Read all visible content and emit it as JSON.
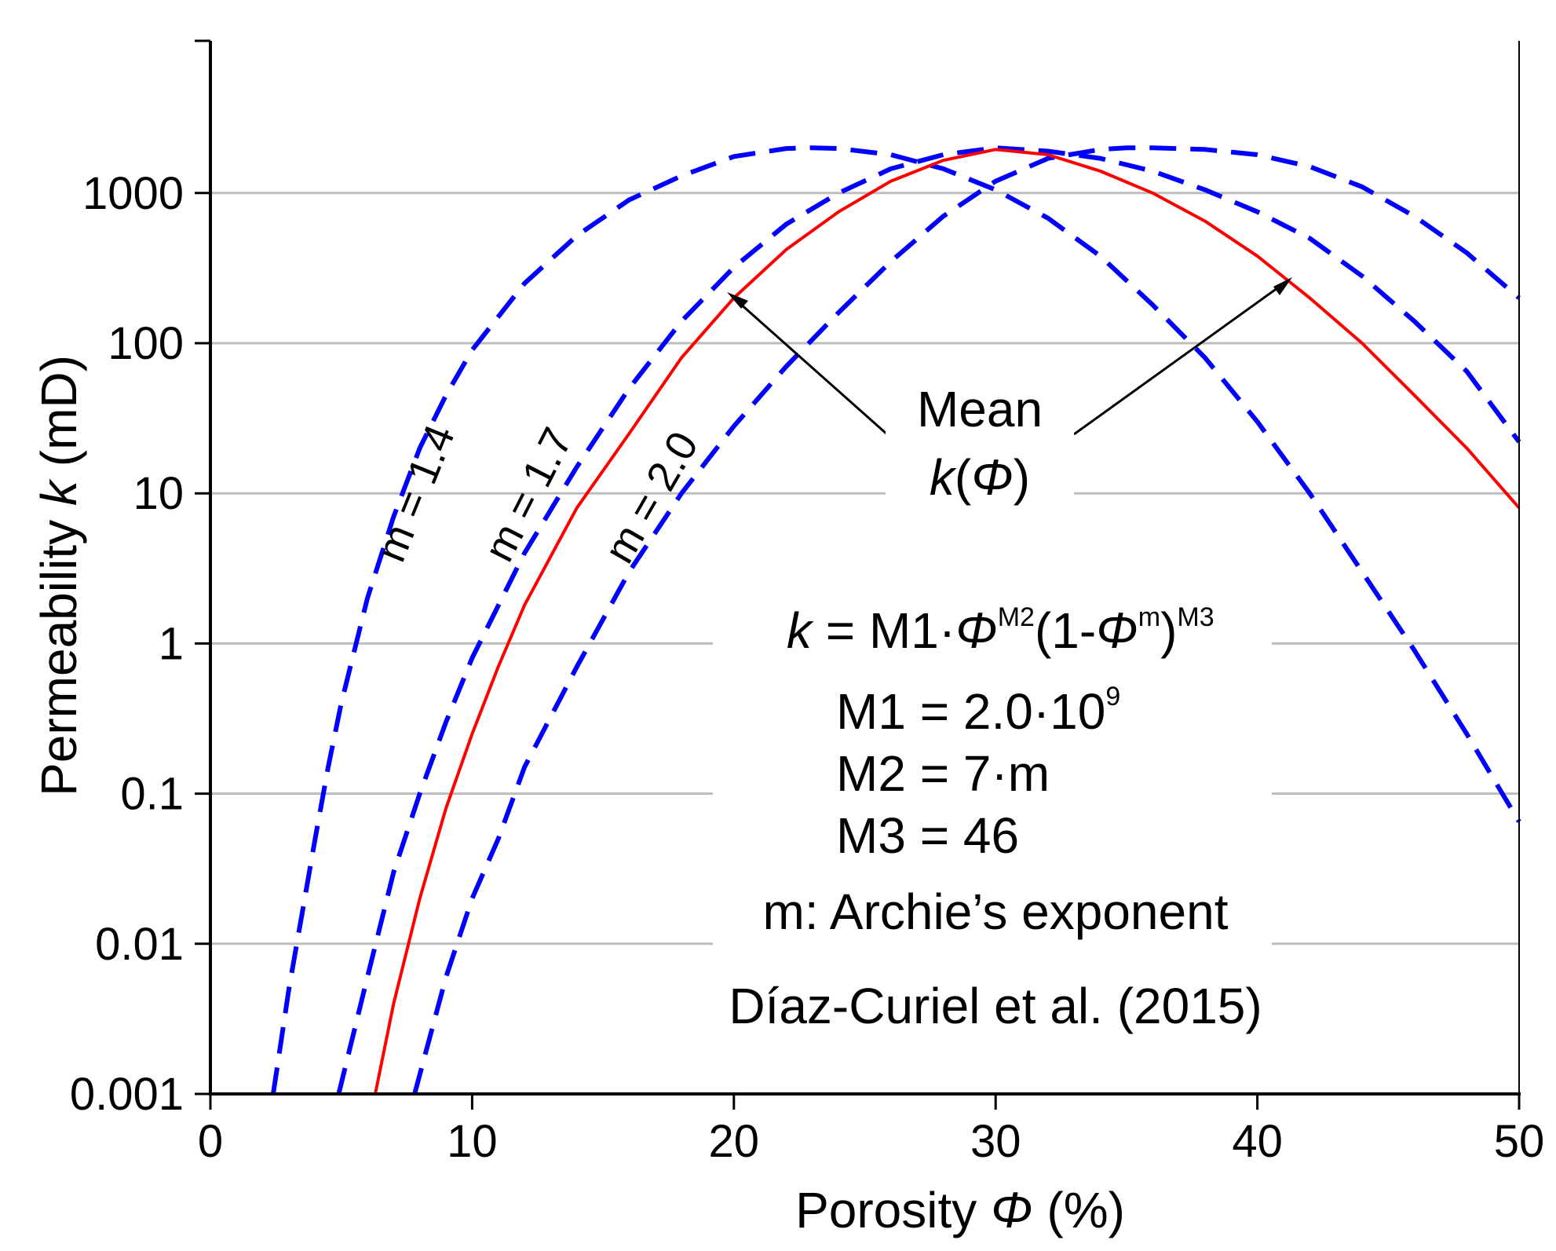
{
  "chart_data": {
    "type": "line",
    "title": "",
    "xlabel": {
      "prefix": "Porosity ",
      "symbol": "Φ",
      "suffix": " (%)"
    },
    "ylabel": {
      "prefix": "Permeability ",
      "symbol": "k",
      "suffix": " (mD)"
    },
    "xlim": [
      0,
      50
    ],
    "ylim": [
      0.001,
      10000
    ],
    "yscale": "log",
    "x_ticks": [
      0,
      10,
      20,
      30,
      40,
      50
    ],
    "x_tick_labels": [
      "0",
      "10",
      "20",
      "30",
      "40",
      "50"
    ],
    "y_ticks": [
      0.001,
      0.01,
      0.1,
      1,
      10,
      100,
      1000
    ],
    "y_tick_labels": [
      "0.001",
      "0.01",
      "0.1",
      "1",
      "10",
      "100",
      "1000"
    ],
    "grid": "horizontal",
    "series": [
      {
        "name": "m = 1.4",
        "label_parts": [
          "m = 1.4"
        ],
        "style": "dashed",
        "color": "#0000ff",
        "x": [
          2.4,
          3,
          4,
          4.5,
          5,
          6,
          7,
          8,
          9,
          10,
          12,
          14,
          16,
          18,
          20,
          22,
          23,
          24,
          26,
          28,
          30,
          32,
          34,
          36,
          38,
          40,
          42,
          44,
          46,
          48,
          50
        ],
        "y": [
          0.001,
          0.005,
          0.05,
          0.15,
          0.4,
          2,
          7,
          20,
          45,
          90,
          250,
          520,
          900,
          1300,
          1750,
          1980,
          2000,
          1980,
          1800,
          1450,
          1050,
          680,
          380,
          180,
          80,
          30,
          10,
          3,
          0.9,
          0.25,
          0.065
        ]
      },
      {
        "name": "m = 1.7",
        "label_parts": [
          "m = 1.7"
        ],
        "style": "dashed",
        "color": "#0000ff",
        "x": [
          4.9,
          6,
          7,
          8,
          9,
          10,
          12,
          14,
          16,
          18,
          20,
          22,
          24,
          26,
          28,
          30,
          32,
          34,
          36,
          38,
          40,
          42,
          44,
          46,
          48,
          50
        ],
        "y": [
          0.001,
          0.006,
          0.03,
          0.1,
          0.3,
          0.8,
          4,
          15,
          50,
          140,
          320,
          620,
          1000,
          1450,
          1800,
          2000,
          1900,
          1700,
          1400,
          1050,
          750,
          500,
          280,
          140,
          65,
          22
        ]
      },
      {
        "name": "m = 2.0",
        "label_parts": [
          "m = 2.0"
        ],
        "style": "dashed",
        "color": "#0000ff",
        "x": [
          7.8,
          9,
          10,
          11,
          12,
          14,
          16,
          18,
          20,
          22,
          24,
          26,
          28,
          30,
          32,
          34,
          35,
          36,
          38,
          40,
          42,
          44,
          46,
          48,
          50
        ],
        "y": [
          0.001,
          0.006,
          0.02,
          0.05,
          0.15,
          0.7,
          3,
          10,
          28,
          70,
          160,
          350,
          700,
          1200,
          1700,
          1950,
          2000,
          2000,
          1950,
          1800,
          1500,
          1100,
          700,
          400,
          200
        ]
      },
      {
        "name": "Mean k(Φ)",
        "style": "solid",
        "color": "#ff0000",
        "x": [
          6.3,
          7,
          8,
          9,
          10,
          11,
          12,
          14,
          16,
          18,
          20,
          22,
          24,
          26,
          28,
          30,
          32,
          34,
          36,
          38,
          40,
          42,
          44,
          46,
          48,
          50
        ],
        "y": [
          0.001,
          0.004,
          0.02,
          0.08,
          0.25,
          0.7,
          1.8,
          8,
          25,
          80,
          200,
          420,
          750,
          1200,
          1650,
          1950,
          1800,
          1400,
          1000,
          650,
          380,
          200,
          100,
          45,
          20,
          8
        ]
      }
    ],
    "annotations": {
      "mean_label_line1": "Mean",
      "mean_label_line2_symbol": "k(",
      "mean_label_line2_phi": "Φ",
      "mean_label_line2_close": ")",
      "formula": {
        "k": "k",
        "eq": " = M1·",
        "phi1": "Φ",
        "sup1": "M2",
        "mid": "(1-",
        "phi2": "Φ",
        "sup2": "m",
        "close": ")",
        "sup3": "M3"
      },
      "m1": {
        "text": "M1 = 2.0·10",
        "sup": "9"
      },
      "m2": "M2 = 7·m",
      "m3": "M3 = 46",
      "m_def": "m: Archie’s exponent",
      "source": "Díaz-Curiel et al. (2015)"
    }
  }
}
